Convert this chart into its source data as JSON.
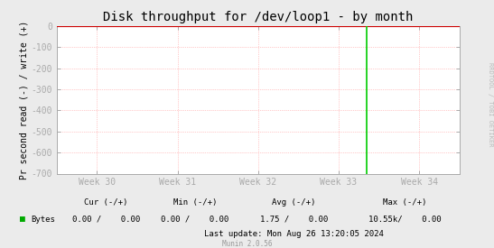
{
  "title": "Disk throughput for /dev/loop1 - by month",
  "ylabel": "Pr second read (-) / write (+)",
  "background_color": "#ebebeb",
  "plot_bg_color": "#ffffff",
  "grid_color": "#ff9999",
  "border_color": "#aaaaaa",
  "ylim": [
    -700,
    0
  ],
  "yticks": [
    0,
    -100,
    -200,
    -300,
    -400,
    -500,
    -600,
    -700
  ],
  "x_week_labels": [
    "Week 30",
    "Week 31",
    "Week 32",
    "Week 33",
    "Week 34"
  ],
  "x_week_positions": [
    0,
    1,
    2,
    3,
    4
  ],
  "green_line_x": 3.35,
  "green_line_color": "#00cc00",
  "zero_line_color": "#cc0000",
  "arrow_color": "#aaaaaa",
  "legend_label": "Bytes",
  "legend_color": "#00aa00",
  "footer_lastupdate": "Last update: Mon Aug 26 13:20:05 2024",
  "footer_munin": "Munin 2.0.56",
  "rrdtool_text": "RRDTOOL / TOBI OETIKER",
  "title_fontsize": 10,
  "axis_fontsize": 7,
  "tick_fontsize": 7,
  "footer_fontsize": 6.5,
  "x_min": -0.5,
  "x_max": 4.5
}
